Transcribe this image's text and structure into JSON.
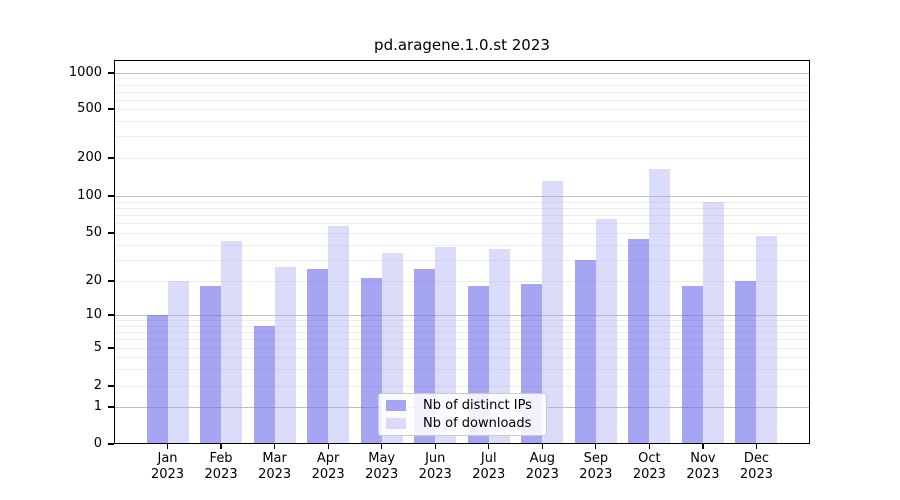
{
  "chart_data": {
    "type": "bar",
    "title": "pd.aragene.1.0.st 2023",
    "year": "2023",
    "categories": [
      "Jan",
      "Feb",
      "Mar",
      "Apr",
      "May",
      "Jun",
      "Jul",
      "Aug",
      "Sep",
      "Oct",
      "Nov",
      "Dec"
    ],
    "series": [
      {
        "name": "Nb of distinct IPs",
        "values": [
          10,
          18,
          8,
          25,
          21,
          25,
          18,
          19,
          30,
          45,
          18,
          20
        ],
        "bar_color": "rgba(110,110,238,0.62)",
        "legend_color": "#a5a5f4"
      },
      {
        "name": "Nb of downloads",
        "values": [
          20,
          43,
          26,
          57,
          34,
          38,
          37,
          131,
          65,
          165,
          90,
          47
        ],
        "bar_color": "rgba(170,170,243,0.42)",
        "legend_color": "#dadaf8"
      }
    ],
    "yticks": [
      0,
      1,
      2,
      5,
      10,
      20,
      50,
      100,
      200,
      500,
      1000
    ],
    "yscale": "log-like (0 at baseline)",
    "ylim": [
      0,
      1300
    ],
    "xlabel": "",
    "ylabel": "",
    "grid": true,
    "legend_position": "lower center"
  },
  "colors": {
    "background": "#ffffff",
    "major_grid": "#bdbdbd",
    "minor_grid": "#ececec",
    "axis": "#000000",
    "text": "#000000"
  }
}
